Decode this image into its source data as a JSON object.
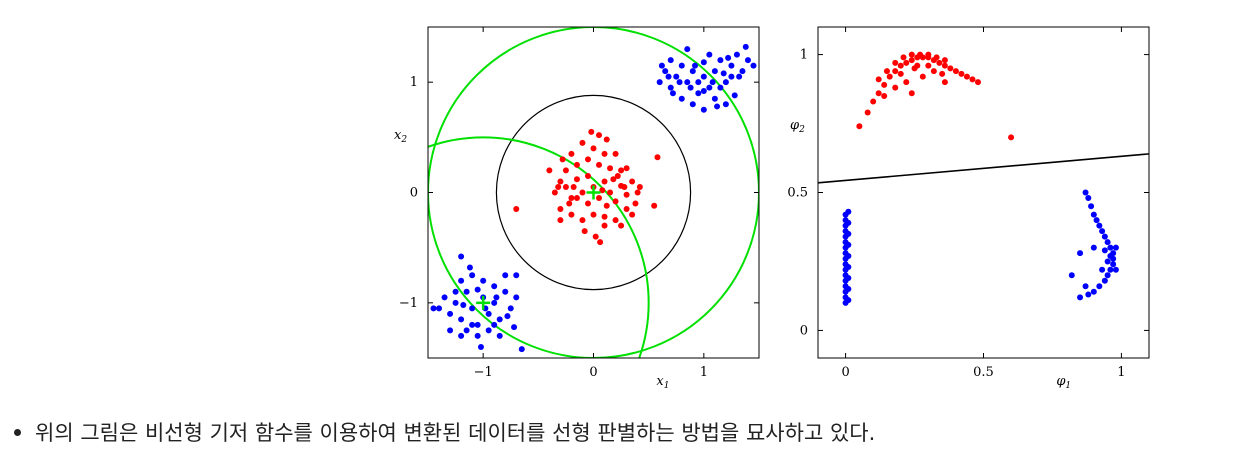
{
  "chart_data": [
    {
      "type": "scatter",
      "xlabel_main": "x",
      "xlabel_sub": "1",
      "ylabel_main": "x",
      "ylabel_sub": "2",
      "xlim": [
        -1.5,
        1.5
      ],
      "ylim": [
        -1.5,
        1.5
      ],
      "xticks": [
        -1,
        0,
        1
      ],
      "xtick_labels": [
        "−1",
        "0",
        "1"
      ],
      "yticks": [
        -1,
        0,
        1
      ],
      "ytick_labels": [
        "−1",
        "0",
        "1"
      ],
      "colors": {
        "red": "#ff0000",
        "blue": "#0000ff",
        "green": "#00e000",
        "black": "#000000"
      },
      "series": [
        {
          "color": "red",
          "points": [
            [
              -0.35,
              0.0
            ],
            [
              -0.3,
              0.1
            ],
            [
              -0.25,
              0.05
            ],
            [
              -0.2,
              -0.05
            ],
            [
              -0.15,
              0.12
            ],
            [
              -0.1,
              0.0
            ],
            [
              -0.05,
              -0.1
            ],
            [
              0.0,
              0.05
            ],
            [
              0.05,
              -0.05
            ],
            [
              0.1,
              0.1
            ],
            [
              0.15,
              0.0
            ],
            [
              0.2,
              -0.08
            ],
            [
              0.25,
              0.06
            ],
            [
              0.3,
              -0.02
            ],
            [
              0.35,
              0.1
            ],
            [
              0.4,
              0.0
            ],
            [
              -0.3,
              -0.15
            ],
            [
              -0.2,
              -0.2
            ],
            [
              -0.1,
              -0.25
            ],
            [
              0.0,
              -0.2
            ],
            [
              0.1,
              -0.22
            ],
            [
              0.2,
              -0.25
            ],
            [
              0.3,
              -0.15
            ],
            [
              0.38,
              -0.1
            ],
            [
              -0.25,
              0.2
            ],
            [
              -0.15,
              0.25
            ],
            [
              -0.05,
              0.3
            ],
            [
              0.05,
              0.25
            ],
            [
              0.15,
              0.22
            ],
            [
              0.25,
              0.2
            ],
            [
              -0.2,
              0.35
            ],
            [
              0.0,
              0.4
            ],
            [
              0.1,
              0.35
            ],
            [
              -0.1,
              0.45
            ],
            [
              0.05,
              0.52
            ],
            [
              -0.02,
              0.55
            ],
            [
              0.12,
              0.48
            ],
            [
              -0.28,
              0.3
            ],
            [
              0.2,
              0.35
            ],
            [
              -0.08,
              -0.35
            ],
            [
              0.02,
              -0.4
            ],
            [
              0.1,
              -0.3
            ],
            [
              -0.3,
              -0.25
            ],
            [
              0.25,
              -0.3
            ],
            [
              0.06,
              -0.45
            ],
            [
              -0.15,
              -0.05
            ],
            [
              -0.05,
              0.15
            ],
            [
              0.08,
              0.02
            ],
            [
              0.3,
              0.22
            ],
            [
              0.18,
              0.12
            ],
            [
              -0.32,
              0.05
            ],
            [
              0.42,
              0.05
            ],
            [
              -0.4,
              0.2
            ],
            [
              0.55,
              -0.12
            ],
            [
              0.58,
              0.32
            ],
            [
              -0.7,
              -0.15
            ],
            [
              0.35,
              -0.2
            ],
            [
              0.28,
              0.05
            ],
            [
              -0.18,
              0.05
            ],
            [
              0.12,
              -0.12
            ],
            [
              -0.22,
              -0.1
            ],
            [
              0.22,
              0.15
            ]
          ]
        },
        {
          "color": "blue",
          "points": [
            [
              0.6,
              1.0
            ],
            [
              0.65,
              1.1
            ],
            [
              0.7,
              0.95
            ],
            [
              0.75,
              1.05
            ],
            [
              0.8,
              1.15
            ],
            [
              0.85,
              1.0
            ],
            [
              0.9,
              1.1
            ],
            [
              0.95,
              0.9
            ],
            [
              1.0,
              1.05
            ],
            [
              1.05,
              0.95
            ],
            [
              1.1,
              1.1
            ],
            [
              1.15,
              1.2
            ],
            [
              1.2,
              1.0
            ],
            [
              1.25,
              1.15
            ],
            [
              1.3,
              1.25
            ],
            [
              1.35,
              1.1
            ],
            [
              1.4,
              1.2
            ],
            [
              0.7,
              1.2
            ],
            [
              0.8,
              0.85
            ],
            [
              0.9,
              0.8
            ],
            [
              1.0,
              0.75
            ],
            [
              1.1,
              0.85
            ],
            [
              1.2,
              0.8
            ],
            [
              1.05,
              1.25
            ],
            [
              0.85,
              1.3
            ],
            [
              0.68,
              1.05
            ],
            [
              0.95,
              1.0
            ],
            [
              1.15,
              0.95
            ],
            [
              1.0,
              0.92
            ],
            [
              0.88,
              0.95
            ],
            [
              1.25,
              1.05
            ],
            [
              1.45,
              1.15
            ],
            [
              1.38,
              1.32
            ],
            [
              0.78,
              1.0
            ],
            [
              1.08,
              1.0
            ],
            [
              1.28,
              0.88
            ],
            [
              1.12,
              0.78
            ],
            [
              0.92,
              1.15
            ],
            [
              1.0,
              1.18
            ],
            [
              1.18,
              1.08
            ],
            [
              0.72,
              0.9
            ],
            [
              0.62,
              1.15
            ],
            [
              1.32,
              1.05
            ],
            [
              1.22,
              1.22
            ],
            [
              -1.4,
              -1.05
            ],
            [
              -1.35,
              -0.95
            ],
            [
              -1.3,
              -1.1
            ],
            [
              -1.25,
              -1.0
            ],
            [
              -1.2,
              -1.15
            ],
            [
              -1.15,
              -0.9
            ],
            [
              -1.1,
              -1.05
            ],
            [
              -1.05,
              -1.2
            ],
            [
              -1.0,
              -0.95
            ],
            [
              -0.95,
              -1.1
            ],
            [
              -0.9,
              -1.0
            ],
            [
              -0.85,
              -1.15
            ],
            [
              -0.8,
              -0.9
            ],
            [
              -0.75,
              -1.05
            ],
            [
              -0.7,
              -0.95
            ],
            [
              -1.2,
              -0.8
            ],
            [
              -1.1,
              -0.75
            ],
            [
              -1.0,
              -0.8
            ],
            [
              -0.9,
              -0.85
            ],
            [
              -0.8,
              -0.75
            ],
            [
              -0.7,
              -0.75
            ],
            [
              -1.15,
              -1.25
            ],
            [
              -1.05,
              -1.3
            ],
            [
              -0.95,
              -1.25
            ],
            [
              -0.85,
              -1.3
            ],
            [
              -1.3,
              -1.25
            ],
            [
              -1.45,
              -1.05
            ],
            [
              -1.2,
              -1.3
            ],
            [
              -1.1,
              -1.2
            ],
            [
              -0.9,
              -1.2
            ],
            [
              -0.78,
              -1.12
            ],
            [
              -1.25,
              -0.9
            ],
            [
              -1.05,
              -0.88
            ],
            [
              -0.98,
              -1.05
            ],
            [
              -1.18,
              -1.02
            ],
            [
              -0.88,
              -0.95
            ],
            [
              -1.12,
              -0.68
            ],
            [
              -1.2,
              -0.58
            ],
            [
              -0.65,
              -1.42
            ],
            [
              -1.02,
              -1.4
            ],
            [
              -0.72,
              -1.22
            ]
          ]
        }
      ],
      "circles": [
        {
          "color": "black",
          "center": [
            0,
            0
          ],
          "radius": 0.88
        },
        {
          "color": "green",
          "center": [
            0,
            0
          ],
          "radius": 1.5
        },
        {
          "color": "green",
          "center": [
            -1,
            -1
          ],
          "radius": 1.5
        }
      ],
      "crosses": [
        {
          "color": "green",
          "point": [
            0,
            0
          ]
        },
        {
          "color": "green",
          "point": [
            -1,
            -1
          ]
        }
      ]
    },
    {
      "type": "scatter",
      "xlabel_main": "φ",
      "xlabel_sub": "1",
      "ylabel_main": "φ",
      "ylabel_sub": "2",
      "xlim": [
        -0.1,
        1.1
      ],
      "ylim": [
        -0.1,
        1.1
      ],
      "xticks": [
        0,
        0.5,
        1
      ],
      "xtick_labels": [
        "0",
        "0.5",
        "1"
      ],
      "yticks": [
        0,
        0.5,
        1
      ],
      "ytick_labels": [
        "0",
        "0.5",
        "1"
      ],
      "colors": {
        "red": "#ff0000",
        "blue": "#0000ff",
        "black": "#000000"
      },
      "series": [
        {
          "color": "red",
          "points": [
            [
              0.05,
              0.74
            ],
            [
              0.08,
              0.79
            ],
            [
              0.1,
              0.83
            ],
            [
              0.12,
              0.86
            ],
            [
              0.14,
              0.89
            ],
            [
              0.16,
              0.92
            ],
            [
              0.18,
              0.94
            ],
            [
              0.2,
              0.96
            ],
            [
              0.22,
              0.97
            ],
            [
              0.24,
              0.98
            ],
            [
              0.26,
              0.99
            ],
            [
              0.28,
              0.99
            ],
            [
              0.3,
              0.99
            ],
            [
              0.32,
              0.98
            ],
            [
              0.34,
              0.97
            ],
            [
              0.36,
              0.96
            ],
            [
              0.38,
              0.95
            ],
            [
              0.4,
              0.94
            ],
            [
              0.42,
              0.93
            ],
            [
              0.44,
              0.92
            ],
            [
              0.46,
              0.91
            ],
            [
              0.48,
              0.9
            ],
            [
              0.12,
              0.91
            ],
            [
              0.15,
              0.94
            ],
            [
              0.18,
              0.97
            ],
            [
              0.21,
              0.99
            ],
            [
              0.24,
              1.0
            ],
            [
              0.27,
              1.0
            ],
            [
              0.3,
              1.0
            ],
            [
              0.33,
              0.99
            ],
            [
              0.36,
              0.98
            ],
            [
              0.2,
              0.93
            ],
            [
              0.25,
              0.95
            ],
            [
              0.3,
              0.96
            ],
            [
              0.35,
              0.93
            ],
            [
              0.22,
              0.9
            ],
            [
              0.28,
              0.92
            ],
            [
              0.18,
              0.88
            ],
            [
              0.14,
              0.85
            ],
            [
              0.32,
              0.94
            ],
            [
              0.26,
              0.96
            ],
            [
              0.24,
              0.86
            ],
            [
              0.36,
              0.9
            ],
            [
              0.6,
              0.7
            ]
          ]
        },
        {
          "color": "blue",
          "points": [
            [
              0.0,
              0.1
            ],
            [
              0.0,
              0.12
            ],
            [
              0.0,
              0.14
            ],
            [
              0.0,
              0.16
            ],
            [
              0.0,
              0.18
            ],
            [
              0.0,
              0.2
            ],
            [
              0.0,
              0.22
            ],
            [
              0.0,
              0.24
            ],
            [
              0.0,
              0.26
            ],
            [
              0.0,
              0.28
            ],
            [
              0.0,
              0.3
            ],
            [
              0.0,
              0.32
            ],
            [
              0.0,
              0.34
            ],
            [
              0.0,
              0.36
            ],
            [
              0.0,
              0.38
            ],
            [
              0.0,
              0.4
            ],
            [
              0.0,
              0.42
            ],
            [
              0.01,
              0.11
            ],
            [
              0.01,
              0.15
            ],
            [
              0.01,
              0.19
            ],
            [
              0.01,
              0.23
            ],
            [
              0.01,
              0.27
            ],
            [
              0.01,
              0.31
            ],
            [
              0.01,
              0.35
            ],
            [
              0.01,
              0.39
            ],
            [
              0.01,
              0.43
            ],
            [
              0.85,
              0.12
            ],
            [
              0.88,
              0.13
            ],
            [
              0.9,
              0.14
            ],
            [
              0.92,
              0.16
            ],
            [
              0.94,
              0.18
            ],
            [
              0.95,
              0.2
            ],
            [
              0.96,
              0.22
            ],
            [
              0.97,
              0.24
            ],
            [
              0.97,
              0.26
            ],
            [
              0.97,
              0.28
            ],
            [
              0.96,
              0.3
            ],
            [
              0.95,
              0.32
            ],
            [
              0.94,
              0.34
            ],
            [
              0.93,
              0.36
            ],
            [
              0.92,
              0.38
            ],
            [
              0.91,
              0.4
            ],
            [
              0.9,
              0.42
            ],
            [
              0.89,
              0.45
            ],
            [
              0.88,
              0.48
            ],
            [
              0.87,
              0.5
            ],
            [
              0.85,
              0.28
            ],
            [
              0.82,
              0.2
            ],
            [
              0.95,
              0.25
            ],
            [
              0.93,
              0.22
            ],
            [
              0.98,
              0.3
            ],
            [
              0.96,
              0.27
            ],
            [
              0.9,
              0.3
            ],
            [
              0.87,
              0.16
            ],
            [
              0.98,
              0.22
            ],
            [
              0.94,
              0.29
            ]
          ]
        }
      ],
      "lines": [
        {
          "color": "black",
          "from": [
            -0.1,
            0.535
          ],
          "to": [
            1.1,
            0.64
          ]
        }
      ]
    }
  ],
  "caption": "위의 그림은 비선형 기저 함수를 이용하여 변환된 데이터를 선형 판별하는 방법을 묘사하고 있다."
}
